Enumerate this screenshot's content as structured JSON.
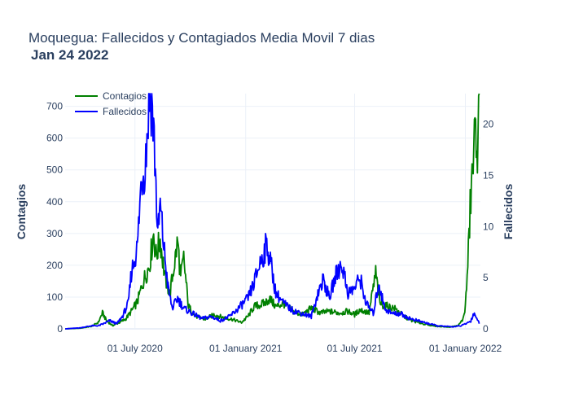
{
  "chart_data": {
    "type": "line",
    "title": "Moquegua: Fallecidos y Contagiados Media Movil 7 dias",
    "subtitle": "Jan 24 2022",
    "x_range": [
      "2020-03-07",
      "2022-01-26"
    ],
    "x_ticks": [
      {
        "date": "2020-07-01",
        "label": "01 July 2020"
      },
      {
        "date": "2021-01-01",
        "label": "01 January 2021"
      },
      {
        "date": "2021-07-01",
        "label": "01 July 2021"
      },
      {
        "date": "2022-01-01",
        "label": "01 January 2022"
      }
    ],
    "y_left": {
      "label": "Contagios",
      "range": [
        0,
        740
      ],
      "ticks": [
        0,
        100,
        200,
        300,
        400,
        500,
        600,
        700
      ]
    },
    "y_right": {
      "label": "Fallecidos",
      "range": [
        0,
        23
      ],
      "ticks": [
        0,
        5,
        10,
        15,
        20
      ]
    },
    "legend": {
      "position": "top-left"
    },
    "grid": true,
    "series": [
      {
        "name": "Contagios",
        "axis": "left",
        "color": "#008000",
        "points": [
          [
            "2020-03-07",
            0
          ],
          [
            "2020-04-01",
            2
          ],
          [
            "2020-04-20",
            8
          ],
          [
            "2020-05-01",
            20
          ],
          [
            "2020-05-08",
            50
          ],
          [
            "2020-05-15",
            25
          ],
          [
            "2020-05-25",
            10
          ],
          [
            "2020-06-05",
            20
          ],
          [
            "2020-06-15",
            30
          ],
          [
            "2020-06-25",
            55
          ],
          [
            "2020-07-05",
            85
          ],
          [
            "2020-07-15",
            150
          ],
          [
            "2020-07-25",
            200
          ],
          [
            "2020-08-01",
            300
          ],
          [
            "2020-08-05",
            230
          ],
          [
            "2020-08-12",
            280
          ],
          [
            "2020-08-20",
            160
          ],
          [
            "2020-08-28",
            110
          ],
          [
            "2020-09-05",
            210
          ],
          [
            "2020-09-10",
            275
          ],
          [
            "2020-09-15",
            160
          ],
          [
            "2020-09-20",
            220
          ],
          [
            "2020-09-28",
            70
          ],
          [
            "2020-10-10",
            40
          ],
          [
            "2020-10-25",
            30
          ],
          [
            "2020-11-10",
            45
          ],
          [
            "2020-11-25",
            35
          ],
          [
            "2020-12-10",
            30
          ],
          [
            "2020-12-25",
            20
          ],
          [
            "2021-01-05",
            40
          ],
          [
            "2021-01-15",
            70
          ],
          [
            "2021-02-01",
            80
          ],
          [
            "2021-02-10",
            95
          ],
          [
            "2021-02-20",
            70
          ],
          [
            "2021-03-05",
            80
          ],
          [
            "2021-03-20",
            55
          ],
          [
            "2021-04-05",
            45
          ],
          [
            "2021-04-20",
            65
          ],
          [
            "2021-05-05",
            50
          ],
          [
            "2021-05-20",
            55
          ],
          [
            "2021-06-05",
            50
          ],
          [
            "2021-06-20",
            55
          ],
          [
            "2021-07-01",
            45
          ],
          [
            "2021-07-10",
            60
          ],
          [
            "2021-07-25",
            50
          ],
          [
            "2021-08-05",
            175
          ],
          [
            "2021-08-12",
            80
          ],
          [
            "2021-08-25",
            70
          ],
          [
            "2021-09-05",
            65
          ],
          [
            "2021-09-20",
            40
          ],
          [
            "2021-10-05",
            25
          ],
          [
            "2021-10-25",
            15
          ],
          [
            "2021-11-15",
            8
          ],
          [
            "2021-12-05",
            6
          ],
          [
            "2021-12-20",
            10
          ],
          [
            "2021-12-28",
            30
          ],
          [
            "2022-01-01",
            70
          ],
          [
            "2022-01-05",
            200
          ],
          [
            "2022-01-10",
            420
          ],
          [
            "2022-01-15",
            550
          ],
          [
            "2022-01-19",
            650
          ],
          [
            "2022-01-22",
            540
          ],
          [
            "2022-01-24",
            740
          ]
        ]
      },
      {
        "name": "Fallecidos",
        "axis": "right",
        "color": "#0000ff",
        "points": [
          [
            "2020-03-07",
            0
          ],
          [
            "2020-04-01",
            0.1
          ],
          [
            "2020-04-20",
            0.3
          ],
          [
            "2020-05-01",
            0.3
          ],
          [
            "2020-05-10",
            0.5
          ],
          [
            "2020-05-20",
            0.8
          ],
          [
            "2020-06-01",
            0.5
          ],
          [
            "2020-06-10",
            1.2
          ],
          [
            "2020-06-20",
            2.5
          ],
          [
            "2020-06-25",
            5.5
          ],
          [
            "2020-07-05",
            8
          ],
          [
            "2020-07-12",
            15
          ],
          [
            "2020-07-18",
            16
          ],
          [
            "2020-07-25",
            23
          ],
          [
            "2020-07-29",
            22.5
          ],
          [
            "2020-08-03",
            17
          ],
          [
            "2020-08-08",
            9
          ],
          [
            "2020-08-12",
            12
          ],
          [
            "2020-08-18",
            8
          ],
          [
            "2020-08-25",
            4
          ],
          [
            "2020-09-01",
            2
          ],
          [
            "2020-09-10",
            3
          ],
          [
            "2020-09-20",
            2
          ],
          [
            "2020-10-05",
            1.5
          ],
          [
            "2020-10-20",
            1
          ],
          [
            "2020-11-05",
            1.2
          ],
          [
            "2020-11-20",
            0.8
          ],
          [
            "2020-12-05",
            1.2
          ],
          [
            "2020-12-20",
            2
          ],
          [
            "2021-01-05",
            3
          ],
          [
            "2021-01-15",
            4.5
          ],
          [
            "2021-01-25",
            6.5
          ],
          [
            "2021-02-01",
            7.5
          ],
          [
            "2021-02-05",
            8.3
          ],
          [
            "2021-02-10",
            7
          ],
          [
            "2021-02-20",
            3.5
          ],
          [
            "2021-03-05",
            2.5
          ],
          [
            "2021-03-20",
            1.8
          ],
          [
            "2021-04-05",
            1.5
          ],
          [
            "2021-04-20",
            1.2
          ],
          [
            "2021-05-01",
            3.5
          ],
          [
            "2021-05-10",
            4.8
          ],
          [
            "2021-05-20",
            3
          ],
          [
            "2021-06-01",
            5.5
          ],
          [
            "2021-06-10",
            6.3
          ],
          [
            "2021-06-20",
            3.5
          ],
          [
            "2021-07-01",
            4
          ],
          [
            "2021-07-10",
            5
          ],
          [
            "2021-07-20",
            2.5
          ],
          [
            "2021-08-01",
            1.5
          ],
          [
            "2021-08-10",
            4.5
          ],
          [
            "2021-08-20",
            2
          ],
          [
            "2021-09-01",
            1.5
          ],
          [
            "2021-09-15",
            1.5
          ],
          [
            "2021-10-01",
            1
          ],
          [
            "2021-10-20",
            0.7
          ],
          [
            "2021-11-15",
            0.3
          ],
          [
            "2021-12-10",
            0.2
          ],
          [
            "2021-12-25",
            0.3
          ],
          [
            "2022-01-05",
            0.6
          ],
          [
            "2022-01-10",
            0.8
          ],
          [
            "2022-01-15",
            1.5
          ],
          [
            "2022-01-19",
            1.2
          ],
          [
            "2022-01-24",
            0.5
          ]
        ]
      }
    ]
  }
}
